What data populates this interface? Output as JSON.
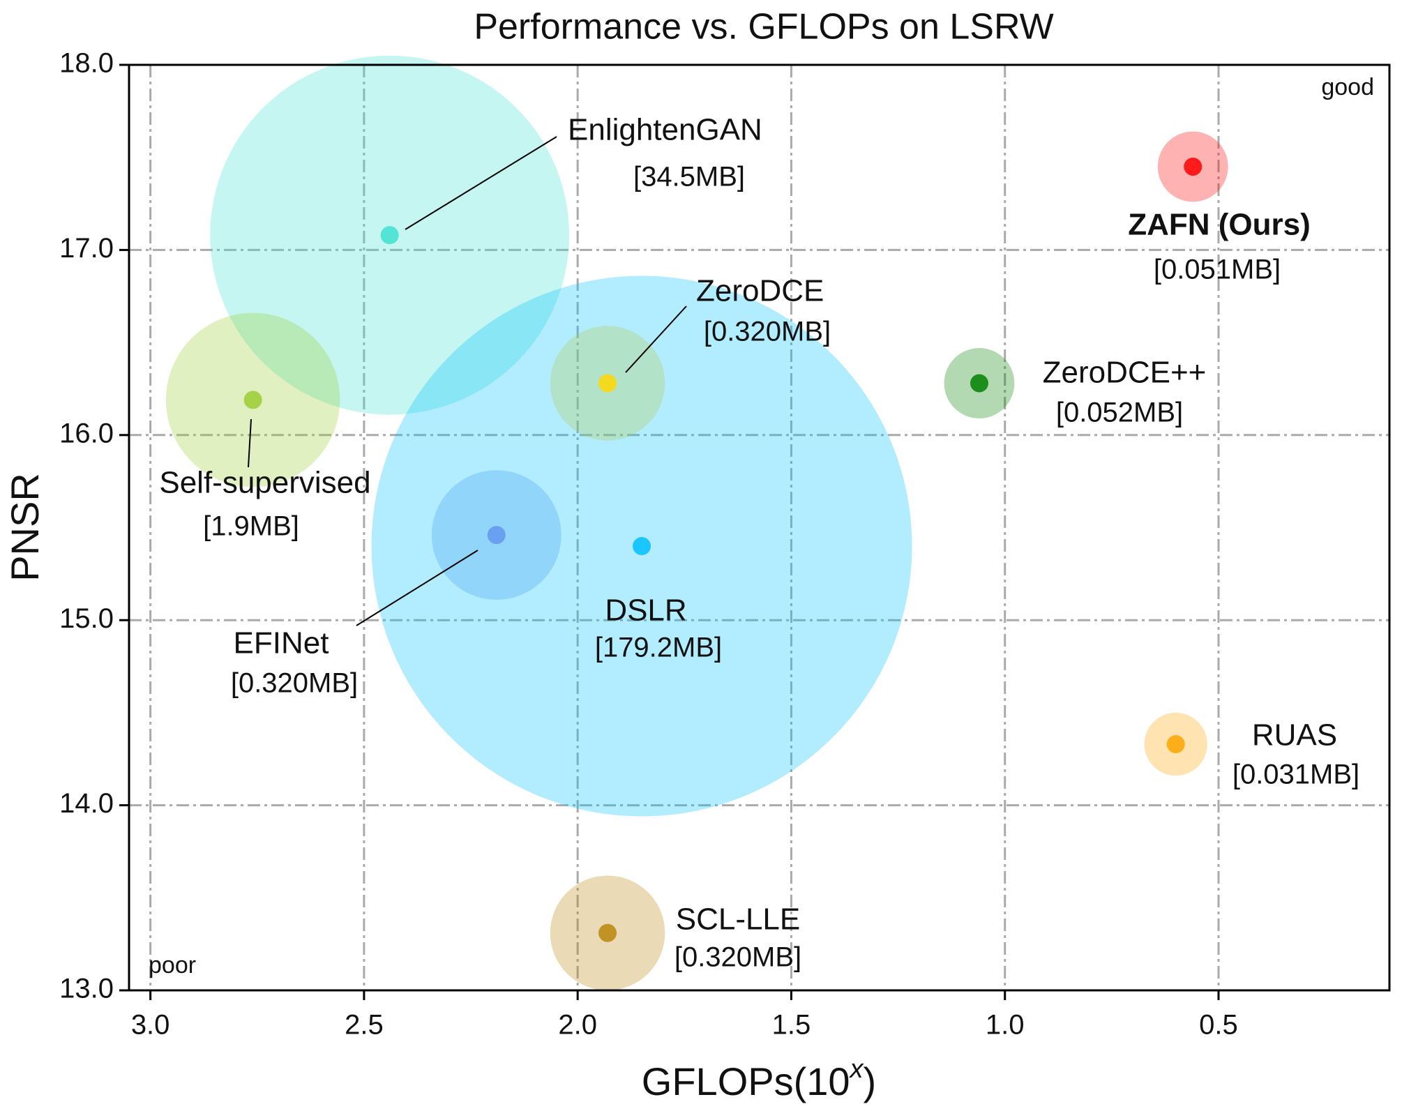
{
  "chart_data": {
    "type": "bubble",
    "title": "Performance vs. GFLOPs on LSRW",
    "xlabel": {
      "text": "GFLOPs(10",
      "sup": "x",
      "close": ")"
    },
    "ylabel": "PNSR",
    "xlim": [
      3.05,
      0.1
    ],
    "ylim": [
      13,
      18
    ],
    "xticks": [
      {
        "value": 3,
        "label": "3.0"
      },
      {
        "value": 2.5,
        "label": "2.5"
      },
      {
        "value": 2,
        "label": "2.0"
      },
      {
        "value": 1.5,
        "label": "1.5"
      },
      {
        "value": 1,
        "label": "1.0"
      },
      {
        "value": 0.5,
        "label": "0.5"
      }
    ],
    "yticks": [
      {
        "value": 13,
        "label": "13.0"
      },
      {
        "value": 14,
        "label": "14.0"
      },
      {
        "value": 15,
        "label": "15.0"
      },
      {
        "value": 16,
        "label": "16.0"
      },
      {
        "value": 17,
        "label": "17.0"
      },
      {
        "value": 18,
        "label": "18.0"
      }
    ],
    "grid": true,
    "annotations": [
      "good",
      "poor"
    ],
    "series": [
      {
        "name": "EnlightenGAN",
        "size_label": "[34.5MB]",
        "color": "#40E0D0",
        "x": 2.44,
        "y": 17.08,
        "size": 0.97
      },
      {
        "name": "Self-supervised",
        "size_label": "[1.9MB]",
        "color": "#9ACD32",
        "x": 2.76,
        "y": 16.19,
        "size": 0.47
      },
      {
        "name": "ZeroDCE",
        "size_label": "[0.320MB]",
        "color": "#FFD700",
        "x": 1.93,
        "y": 16.28,
        "size": 0.31
      },
      {
        "name": "EFINet",
        "size_label": "[0.320MB]",
        "color": "#6495ED",
        "x": 2.19,
        "y": 15.46,
        "size": 0.35
      },
      {
        "name": "DSLR",
        "size_label": "[179.2MB]",
        "color": "#00BFFF",
        "x": 1.85,
        "y": 15.4,
        "size": 1.46
      },
      {
        "name": "ZAFN (Ours)",
        "size_label": "[0.051MB]",
        "color": "#FF0000",
        "x": 0.56,
        "y": 17.45,
        "size": 0.19
      },
      {
        "name": "ZeroDCE++",
        "size_label": "[0.052MB]",
        "color": "#008000",
        "x": 1.06,
        "y": 16.28,
        "size": 0.19
      },
      {
        "name": "RUAS",
        "size_label": "[0.031MB]",
        "color": "#FFA500",
        "x": 0.6,
        "y": 14.33,
        "size": 0.17
      },
      {
        "name": "SCL-LLE",
        "size_label": "[0.320MB]",
        "color": "#B8860B",
        "x": 1.93,
        "y": 13.31,
        "size": 0.31
      }
    ]
  }
}
